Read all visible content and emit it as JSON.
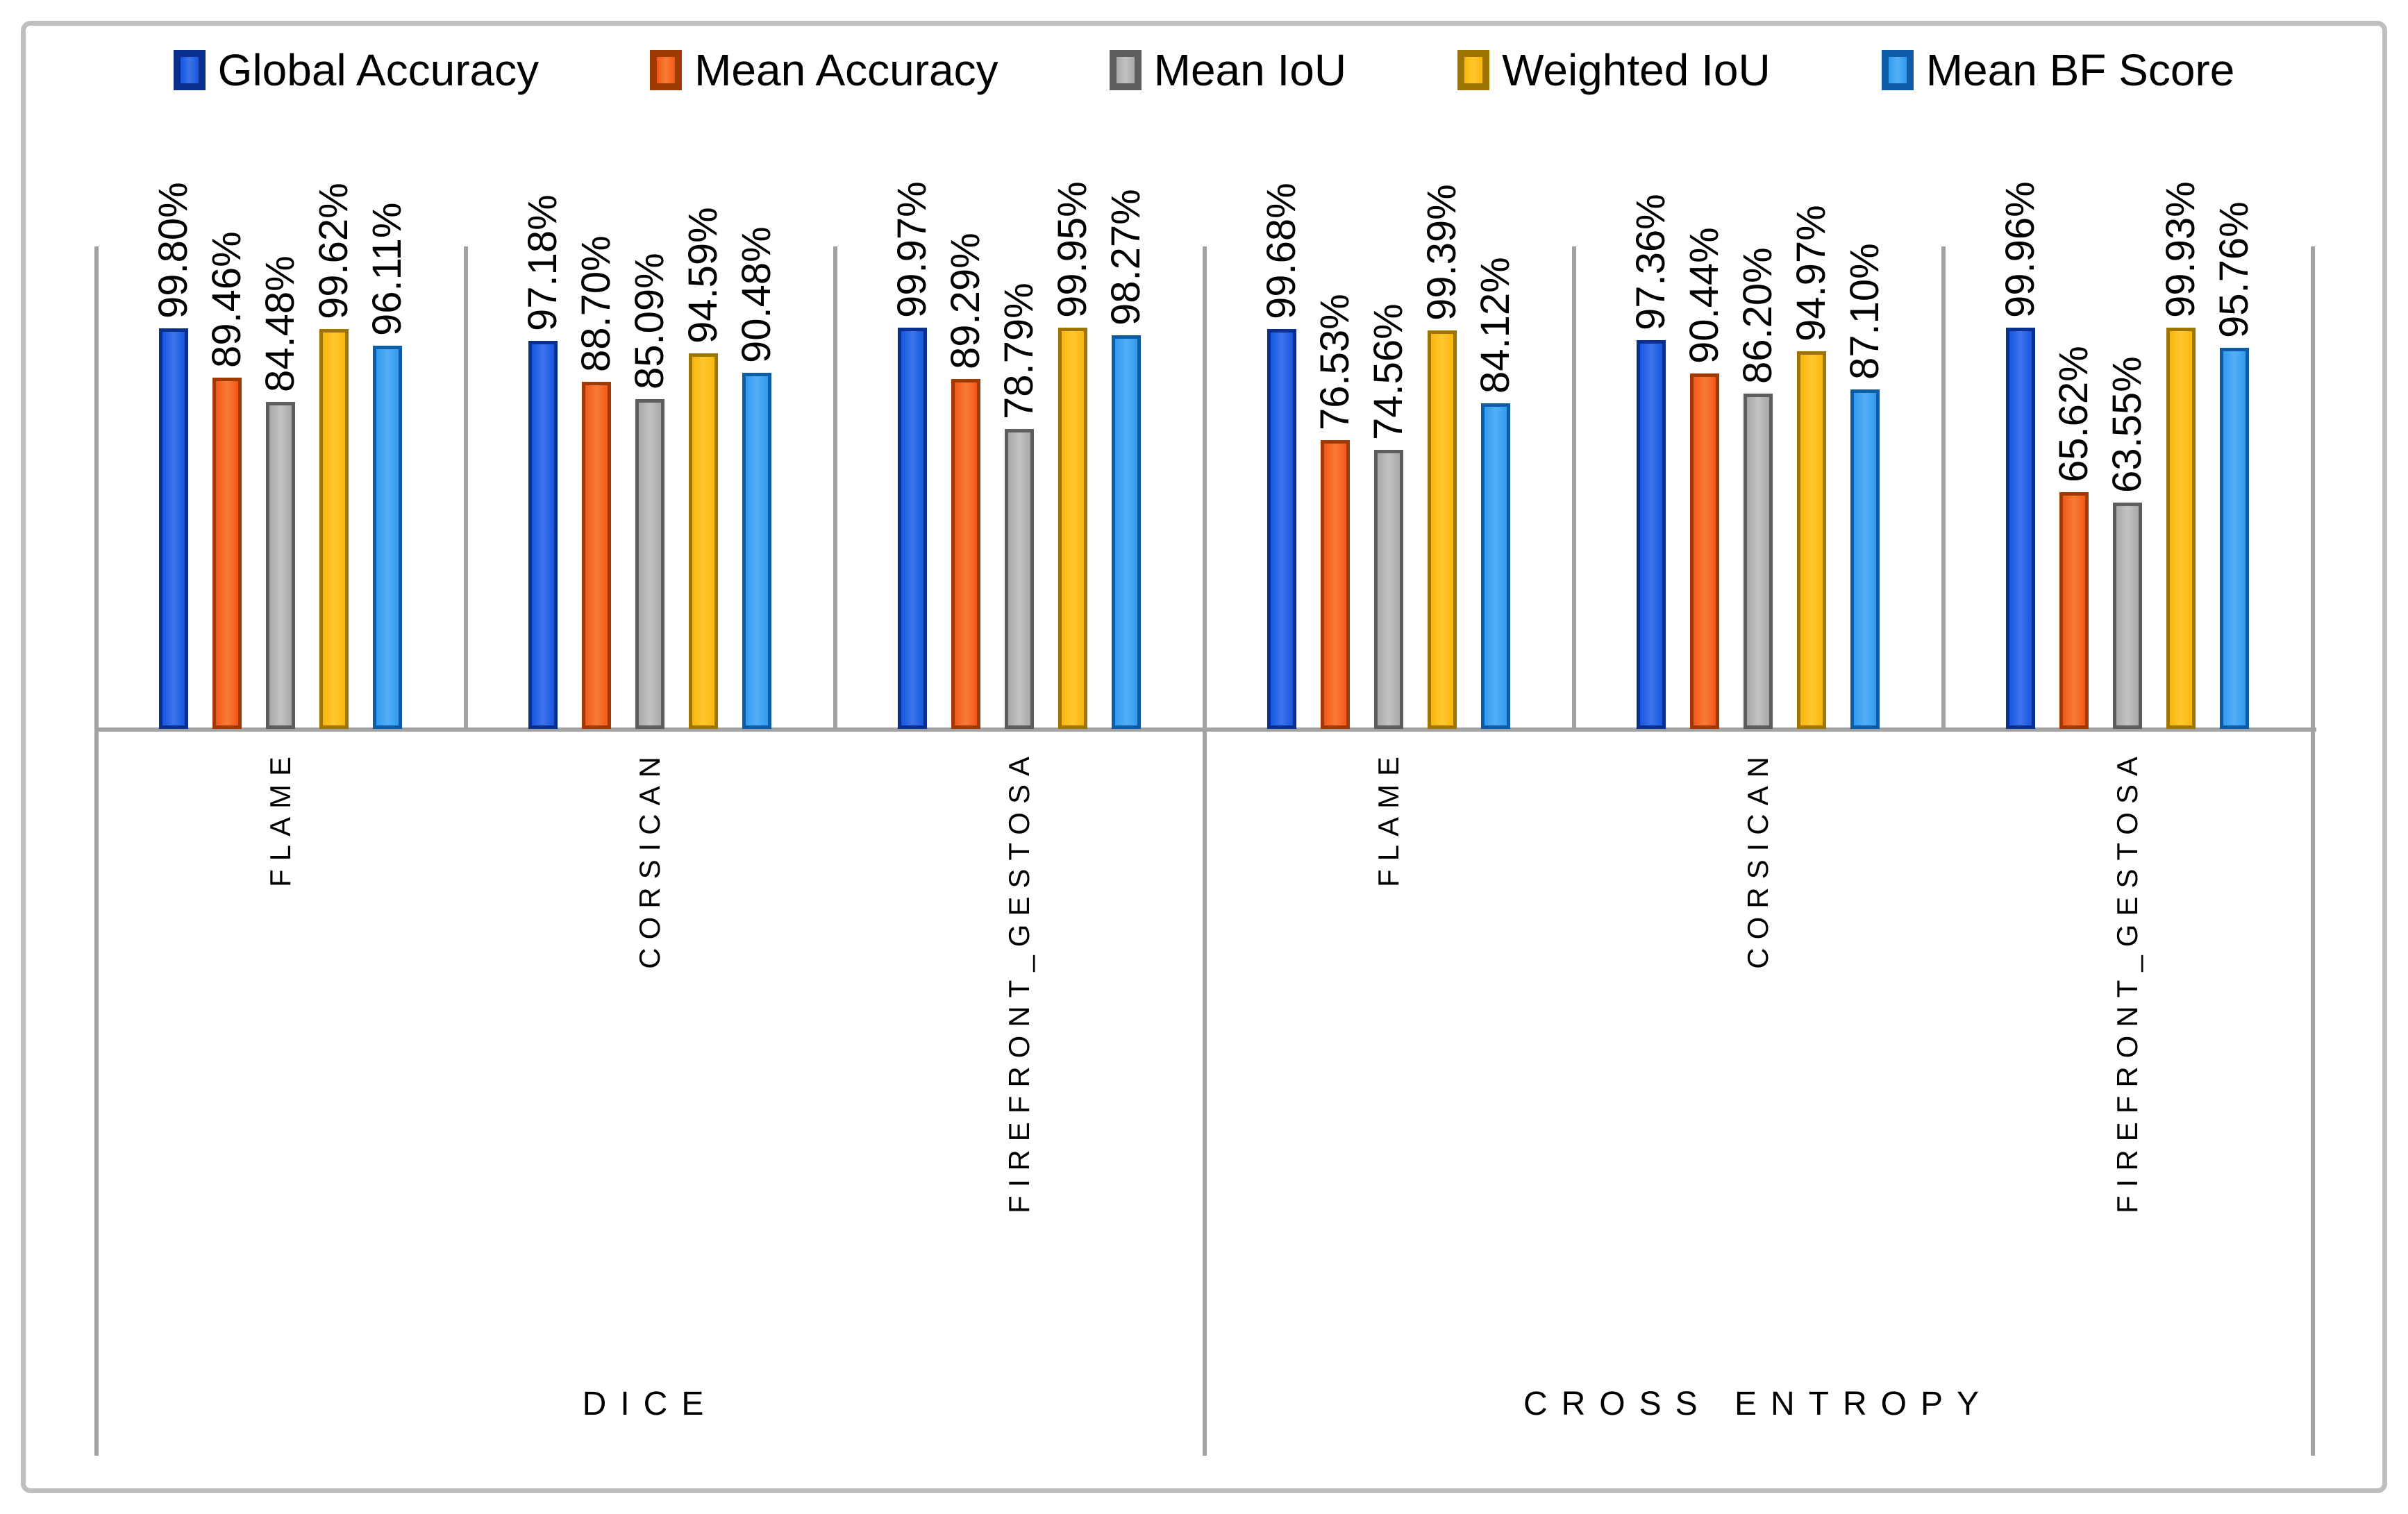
{
  "chart_data": {
    "type": "bar",
    "title": "",
    "value_format": "percent",
    "legend_position": "top",
    "value_axis_visible": false,
    "series_names": [
      "Global Accuracy",
      "Mean Accuracy",
      "Mean IoU",
      "Weighted IoU",
      "Mean BF Score"
    ],
    "series_colors": [
      {
        "fill": "#1557e0",
        "light": "#3d74ea",
        "border": "#0a2f8c"
      },
      {
        "fill": "#f2591b",
        "light": "#f97b35",
        "border": "#a03a05"
      },
      {
        "fill": "#a8a8a8",
        "light": "#c2c2c2",
        "border": "#5e5e5e"
      },
      {
        "fill": "#f8b70d",
        "light": "#ffc72e",
        "border": "#9e7500"
      },
      {
        "fill": "#309bf0",
        "light": "#55aff5",
        "border": "#0e5ba8"
      }
    ],
    "group_level_1": [
      "DICE",
      "CROSS ENTROPY"
    ],
    "groups": [
      {
        "loss": "DICE",
        "dataset": "FLAME",
        "values": [
          99.8,
          89.46,
          84.48,
          99.62,
          96.11
        ],
        "labels": [
          "99.80%",
          "89.46%",
          "84.48%",
          "99.62%",
          "96.11%"
        ]
      },
      {
        "loss": "DICE",
        "dataset": "CORSICAN",
        "values": [
          97.18,
          88.7,
          85.09,
          94.59,
          90.48
        ],
        "labels": [
          "97.18%",
          "88.70%",
          "85.09%",
          "94.59%",
          "90.48%"
        ]
      },
      {
        "loss": "DICE",
        "dataset": "FIREFRONT_GESTOSA",
        "values": [
          99.97,
          89.29,
          78.79,
          99.95,
          98.27
        ],
        "labels": [
          "99.97%",
          "89.29%",
          "78.79%",
          "99.95%",
          "98.27%"
        ]
      },
      {
        "loss": "CROSS ENTROPY",
        "dataset": "FLAME",
        "values": [
          99.68,
          76.53,
          74.56,
          99.39,
          84.12
        ],
        "labels": [
          "99.68%",
          "76.53%",
          "74.56%",
          "99.39%",
          "84.12%"
        ]
      },
      {
        "loss": "CROSS ENTROPY",
        "dataset": "CORSICAN",
        "values": [
          97.36,
          90.44,
          86.2,
          94.97,
          87.1
        ],
        "labels": [
          "97.36%",
          "90.44%",
          "86.20%",
          "94.97%",
          "87.10%"
        ]
      },
      {
        "loss": "CROSS ENTROPY",
        "dataset": "FIREFRONT_GESTOSA",
        "values": [
          99.96,
          65.62,
          63.55,
          99.93,
          95.76
        ],
        "labels": [
          "99.96%",
          "65.62%",
          "63.55%",
          "99.93%",
          "95.76%"
        ]
      }
    ],
    "colors": {
      "outer_border": "#bfbfbf",
      "axis_lines": "#a3a3a3",
      "label_text": "#000000"
    }
  }
}
